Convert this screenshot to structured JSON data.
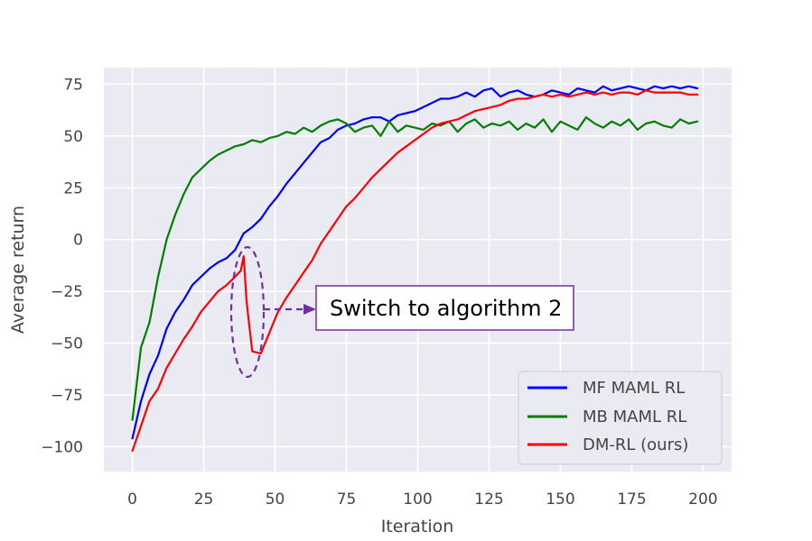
{
  "chart_data": {
    "type": "line",
    "xlabel": "Iteration",
    "ylabel": "Average return",
    "xlim": [
      -10,
      210
    ],
    "ylim": [
      -112,
      83
    ],
    "xticks": [
      0,
      25,
      50,
      75,
      100,
      125,
      150,
      175,
      200
    ],
    "yticks": [
      -100,
      -75,
      -50,
      -25,
      0,
      25,
      50,
      75
    ],
    "grid": true,
    "legend_position": "bottom-right",
    "series": [
      {
        "name": "MF MAML RL",
        "color": "#0000ff",
        "x": [
          0,
          3,
          6,
          9,
          12,
          15,
          18,
          21,
          24,
          27,
          30,
          33,
          36,
          39,
          42,
          45,
          48,
          51,
          54,
          57,
          60,
          63,
          66,
          69,
          72,
          75,
          78,
          81,
          84,
          87,
          90,
          93,
          96,
          99,
          102,
          105,
          108,
          111,
          114,
          117,
          120,
          123,
          126,
          129,
          132,
          135,
          138,
          141,
          144,
          147,
          150,
          153,
          156,
          159,
          162,
          165,
          168,
          171,
          174,
          177,
          180,
          183,
          186,
          189,
          192,
          195,
          198
        ],
        "y": [
          -96,
          -78,
          -65,
          -56,
          -43,
          -35,
          -29,
          -22,
          -18,
          -14,
          -11,
          -9,
          -5,
          3,
          6,
          10,
          16,
          21,
          27,
          32,
          37,
          42,
          47,
          49,
          53,
          55,
          56,
          58,
          59,
          59,
          57,
          60,
          61,
          62,
          64,
          66,
          68,
          68,
          69,
          71,
          69,
          72,
          73,
          69,
          71,
          72,
          70,
          69,
          70,
          72,
          71,
          70,
          73,
          72,
          71,
          74,
          72,
          73,
          74,
          73,
          72,
          74,
          73,
          74,
          73,
          74,
          73
        ]
      },
      {
        "name": "MB MAML RL",
        "color": "#008000",
        "x": [
          0,
          3,
          6,
          9,
          12,
          15,
          18,
          21,
          24,
          27,
          30,
          33,
          36,
          39,
          42,
          45,
          48,
          51,
          54,
          57,
          60,
          63,
          66,
          69,
          72,
          75,
          78,
          81,
          84,
          87,
          90,
          93,
          96,
          99,
          102,
          105,
          108,
          111,
          114,
          117,
          120,
          123,
          126,
          129,
          132,
          135,
          138,
          141,
          144,
          147,
          150,
          153,
          156,
          159,
          162,
          165,
          168,
          171,
          174,
          177,
          180,
          183,
          186,
          189,
          192,
          195,
          198
        ],
        "y": [
          -87,
          -52,
          -40,
          -18,
          0,
          12,
          22,
          30,
          34,
          38,
          41,
          43,
          45,
          46,
          48,
          47,
          49,
          50,
          52,
          51,
          54,
          52,
          55,
          57,
          58,
          56,
          52,
          54,
          55,
          50,
          57,
          52,
          55,
          54,
          53,
          56,
          55,
          57,
          52,
          56,
          58,
          54,
          56,
          55,
          57,
          53,
          56,
          54,
          58,
          52,
          57,
          55,
          53,
          59,
          56,
          54,
          57,
          55,
          58,
          53,
          56,
          57,
          55,
          54,
          58,
          56,
          57
        ]
      },
      {
        "name": "DM-RL (ours)",
        "color": "#ff0000",
        "x": [
          0,
          3,
          6,
          9,
          12,
          15,
          18,
          21,
          24,
          27,
          30,
          33,
          36,
          38,
          39,
          40,
          42,
          45,
          48,
          51,
          54,
          57,
          60,
          63,
          66,
          69,
          72,
          75,
          78,
          81,
          84,
          87,
          90,
          93,
          96,
          99,
          102,
          105,
          108,
          111,
          114,
          117,
          120,
          123,
          126,
          129,
          132,
          135,
          138,
          141,
          144,
          147,
          150,
          153,
          156,
          159,
          162,
          165,
          168,
          171,
          174,
          177,
          180,
          183,
          186,
          189,
          192,
          195,
          198
        ],
        "y": [
          -102,
          -90,
          -78,
          -72,
          -62,
          -55,
          -48,
          -42,
          -35,
          -30,
          -25,
          -22,
          -18,
          -15,
          -8,
          -30,
          -54,
          -55,
          -45,
          -35,
          -28,
          -22,
          -16,
          -10,
          -2,
          4,
          10,
          16,
          20,
          25,
          30,
          34,
          38,
          42,
          45,
          48,
          51,
          54,
          56,
          57,
          58,
          60,
          62,
          63,
          64,
          65,
          67,
          68,
          68,
          69,
          70,
          69,
          70,
          69,
          70,
          71,
          70,
          71,
          70,
          71,
          71,
          70,
          72,
          71,
          71,
          71,
          71,
          70,
          70
        ]
      }
    ],
    "annotation": {
      "text": "Switch to algorithm 2",
      "target_x": 41,
      "target_y": -35
    }
  }
}
